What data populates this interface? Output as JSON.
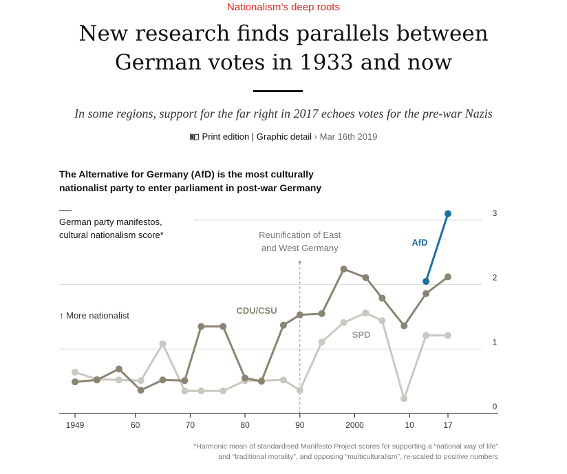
{
  "article": {
    "kicker": "Nationalism’s deep roots",
    "headline_line1": "New research finds parallels between",
    "headline_line2": "German votes in 1933 and now",
    "subhead": "In some regions, support for the far right in 2017 echoes votes for the pre-war Nazis",
    "meta_section": "Print edition | Graphic detail",
    "meta_separator": "›",
    "meta_date": "Mar 16th 2019"
  },
  "chart_title_line1": "The Alternative for Germany (AfD) is the most culturally",
  "chart_title_line2": "nationalist party to enter parliament in post-war Germany",
  "ylabel_line1": "German party manifestos,",
  "ylabel_line2": "cultural nationalism score*",
  "direction_label": "↑ More nationalist",
  "annotation_line1": "Reunification of East",
  "annotation_line2": "and West Germany",
  "footnote_line1": "*Harmonic mean of standardised Manifesto Project scores for supporting a “national way of life”",
  "footnote_line2": "and “traditional morality”, and opposing “multiculturalism”, re-scaled to positive numbers",
  "colors": {
    "cdu": "#8a8473",
    "spd": "#c9c8c1",
    "afd": "#1f6f9e",
    "grid": "#d9d9d9",
    "kicker": "#d7281e"
  },
  "chart_data": {
    "type": "line",
    "title": "The Alternative for Germany (AfD) is the most culturally nationalist party to enter parliament in post-war Germany",
    "ylabel": "German party manifestos, cultural nationalism score*",
    "xlim": [
      1947,
      2019
    ],
    "ylim": [
      0,
      3
    ],
    "x_ticks": [
      1949,
      1960,
      1970,
      1980,
      1990,
      2000,
      2010,
      2017
    ],
    "x_tick_labels": [
      "1949",
      "60",
      "70",
      "80",
      "90",
      "2000",
      "10",
      "17"
    ],
    "y_ticks": [
      0,
      1,
      2,
      3
    ],
    "y_tick_labels": [
      "0",
      "1",
      "2",
      "3"
    ],
    "grid": true,
    "legend": "inline labels",
    "annotation": {
      "x": 1990,
      "text": "Reunification of East and West Germany"
    },
    "series": [
      {
        "name": "CDU/CSU",
        "x": [
          1949,
          1953,
          1957,
          1961,
          1965,
          1969,
          1972,
          1976,
          1980,
          1983,
          1987,
          1990,
          1994,
          1998,
          2002,
          2005,
          2009,
          2013,
          2017
        ],
        "values": [
          0.49,
          0.52,
          0.69,
          0.36,
          0.52,
          0.51,
          1.35,
          1.35,
          0.55,
          0.5,
          1.37,
          1.53,
          1.55,
          2.24,
          2.11,
          1.79,
          1.36,
          1.86,
          2.12
        ]
      },
      {
        "name": "SPD",
        "x": [
          1949,
          1953,
          1957,
          1961,
          1965,
          1969,
          1972,
          1976,
          1980,
          1983,
          1987,
          1990,
          1994,
          1998,
          2002,
          2005,
          2009,
          2013,
          2017
        ],
        "values": [
          0.64,
          0.53,
          0.52,
          0.51,
          1.08,
          0.35,
          0.35,
          0.35,
          0.51,
          0.51,
          0.52,
          0.36,
          1.11,
          1.41,
          1.56,
          1.44,
          0.23,
          1.21,
          1.21
        ]
      },
      {
        "name": "AfD",
        "x": [
          2013,
          2017
        ],
        "values": [
          2.05,
          3.1
        ]
      }
    ]
  }
}
